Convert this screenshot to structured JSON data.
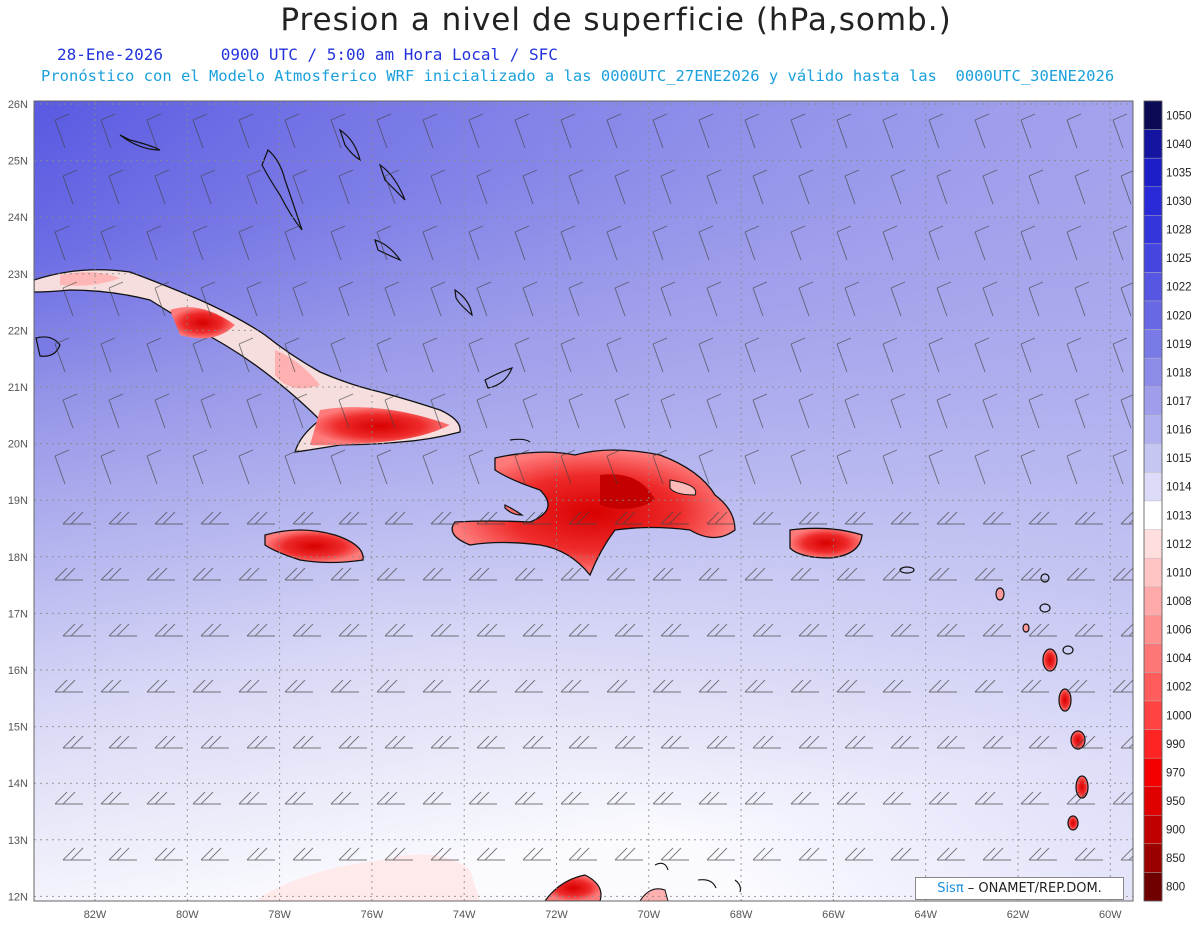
{
  "title": "Presion a nivel de superficie (hPa,somb.)",
  "subtitle": {
    "date": "28-Ene-2026",
    "time": "0900 UTC / 5:00 am Hora Local / SFC",
    "model": "Pronóstico con el Modelo Atmosferico WRF inicializado a las 0000UTC_27ENE2026 y válido hasta las  0000UTC_30ENE2026"
  },
  "axes": {
    "lat_labels": [
      "26N",
      "25N",
      "24N",
      "23N",
      "22N",
      "21N",
      "20N",
      "19N",
      "18N",
      "17N",
      "16N",
      "15N",
      "14N",
      "13N",
      "12N"
    ],
    "lon_labels": [
      "82W",
      "80W",
      "78W",
      "76W",
      "74W",
      "72W",
      "70W",
      "68W",
      "66W",
      "64W",
      "62W",
      "60W"
    ]
  },
  "colorbar": {
    "levels": [
      "1050",
      "1040",
      "1035",
      "1030",
      "1028",
      "1025",
      "1022",
      "1020",
      "1019",
      "1018",
      "1017",
      "1016",
      "1015",
      "1014",
      "1013",
      "1012",
      "1010",
      "1008",
      "1006",
      "1004",
      "1002",
      "1000",
      "990",
      "970",
      "950",
      "900",
      "850",
      "800"
    ],
    "colors": [
      "#0a0a55",
      "#1414a0",
      "#1e1ec8",
      "#2a2ad8",
      "#3535dc",
      "#4545e0",
      "#5656e2",
      "#6868e4",
      "#7a7ae6",
      "#8c8ce8",
      "#9e9eea",
      "#b0b0ee",
      "#c6c6f2",
      "#dcdcf8",
      "#ffffff",
      "#ffdede",
      "#ffc4c4",
      "#ffaaaa",
      "#ff9090",
      "#ff7676",
      "#ff5c5c",
      "#ff4242",
      "#ff2424",
      "#f40000",
      "#e00000",
      "#c00000",
      "#9a0000",
      "#700000"
    ]
  },
  "credit": {
    "logo": "Sisπ",
    "text": " – ONAMET/REP.DOM."
  }
}
